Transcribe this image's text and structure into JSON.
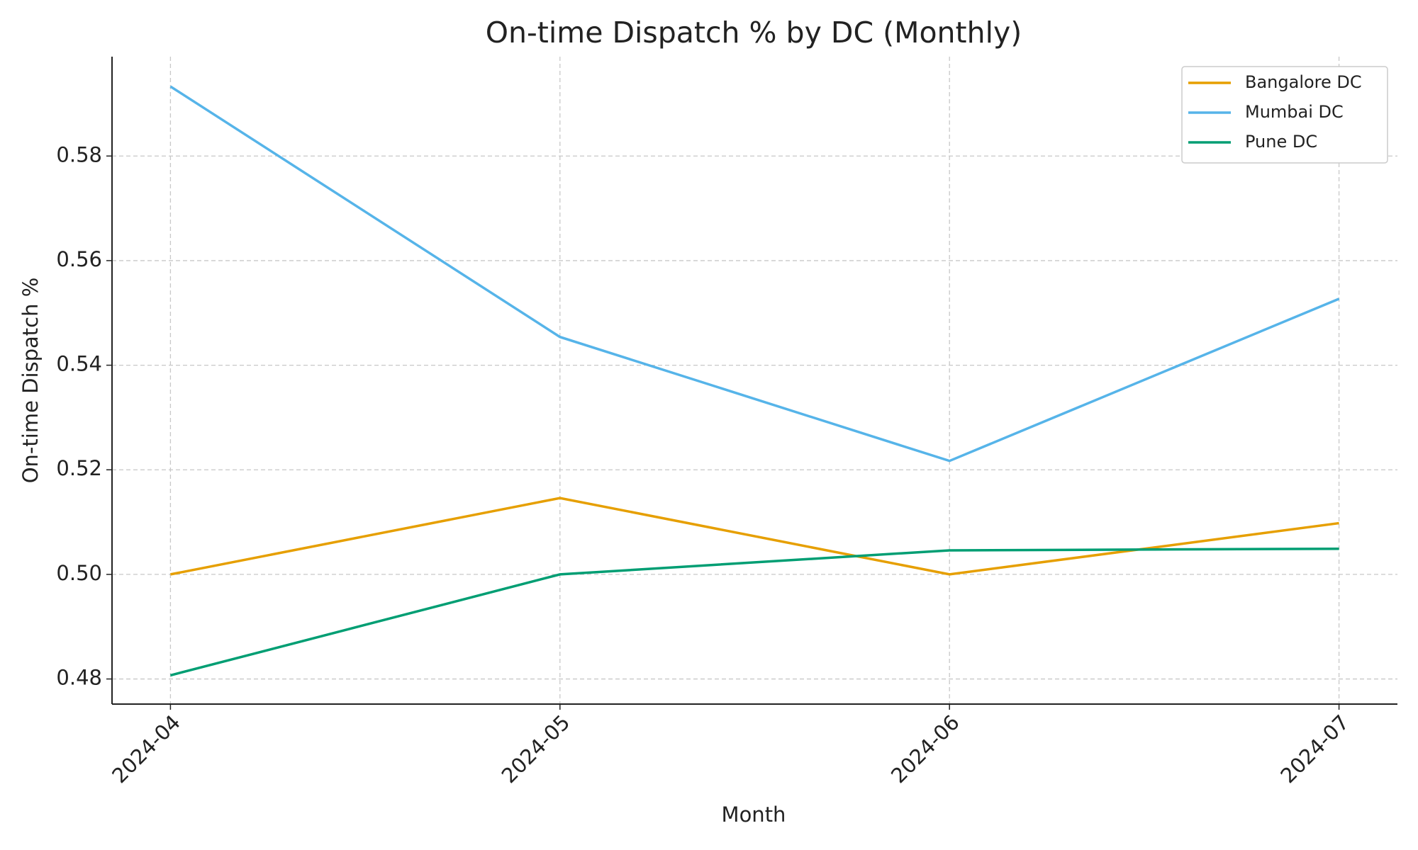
{
  "chart_data": {
    "type": "line",
    "title": "On-time Dispatch % by DC (Monthly)",
    "x_label": "Month",
    "y_label": "On-time Dispatch %",
    "categories": [
      "2024-04",
      "2024-05",
      "2024-06",
      "2024-07"
    ],
    "series": [
      {
        "name": "Bangalore DC",
        "color": "#e69f00",
        "values": [
          0.5,
          0.5146,
          0.5,
          0.5098
        ]
      },
      {
        "name": "Mumbai DC",
        "color": "#56b4e9",
        "values": [
          0.5933,
          0.5454,
          0.5217,
          0.5527
        ]
      },
      {
        "name": "Pune DC",
        "color": "#009e73",
        "values": [
          0.4807,
          0.5,
          0.5046,
          0.5049
        ]
      }
    ],
    "ylim": [
      0.4752,
      0.599
    ],
    "yticks": [
      {
        "value": 0.48,
        "label": "0.48"
      },
      {
        "value": 0.5,
        "label": "0.50"
      },
      {
        "value": 0.52,
        "label": "0.52"
      },
      {
        "value": 0.54,
        "label": "0.54"
      },
      {
        "value": 0.56,
        "label": "0.56"
      },
      {
        "value": 0.58,
        "label": "0.58"
      }
    ],
    "grid": true,
    "legend": "upper right"
  }
}
